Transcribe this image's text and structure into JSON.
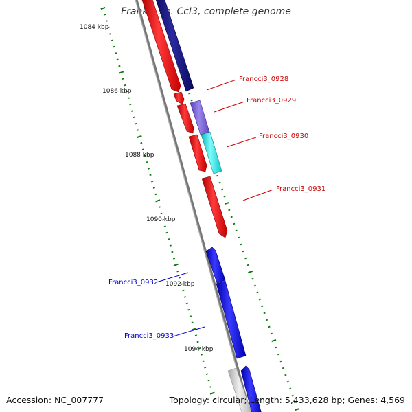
{
  "title": "Frankia sp. CcI3, complete genome",
  "footer": {
    "accession": "Accession: NC_007777",
    "stats": "Topology: circular; Length: 5,433,628 bp; Genes: 4,569"
  },
  "position_labels": [
    "1084 kbp",
    "1086 kbp",
    "1088 kbp",
    "1090 kbp",
    "1092 kbp",
    "1094 kbp"
  ],
  "gene_labels": [
    {
      "name": "Francci3_0928",
      "color": "#cc0000"
    },
    {
      "name": "Francci3_0929",
      "color": "#cc0000"
    },
    {
      "name": "Francci3_0930",
      "color": "#cc0000"
    },
    {
      "name": "Francci3_0931",
      "color": "#cc0000"
    },
    {
      "name": "Francci3_0932",
      "color": "#0000cc"
    },
    {
      "name": "Francci3_0933",
      "color": "#0000cc"
    }
  ],
  "colors": {
    "red": "#ff0000",
    "navy": "#0a0a78",
    "slate": "#7a5fd6",
    "cyan": "#11e6e6",
    "blue": "#0000ee",
    "gray": "#cfcfcf",
    "backbone": "#888888",
    "ticks": "#0a7a0a"
  }
}
